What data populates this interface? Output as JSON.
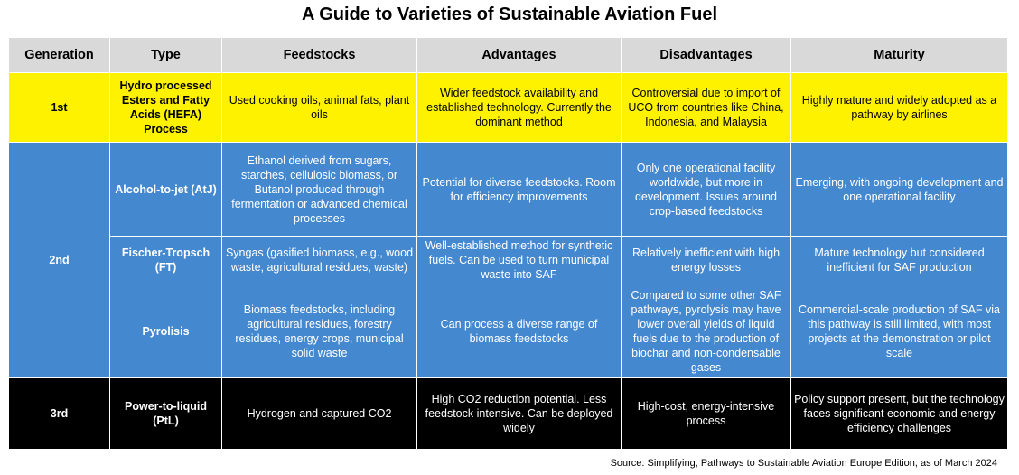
{
  "title": "A Guide to Varieties of Sustainable Aviation Fuel",
  "headers": [
    "Generation",
    "Type",
    "Feedstocks",
    "Advantages",
    "Disadvantages",
    "Maturity"
  ],
  "colors": {
    "header_bg": "#d9d9d9",
    "first_gen_bg": "#fff200",
    "second_gen_bg": "#4488d0",
    "third_gen_bg": "#000000"
  },
  "rows": {
    "first": {
      "generation": "1st",
      "type": "Hydro processed Esters and Fatty Acids (HEFA) Process",
      "feedstocks": "Used cooking oils, animal fats, plant oils",
      "advantages": "Wider feedstock availability and established technology. Currently the dominant method",
      "disadvantages": "Controversial due to import of UCO from countries like China, Indonesia, and Malaysia",
      "maturity": "Highly mature and widely adopted as a pathway  by airlines"
    },
    "second_generation": "2nd",
    "atj": {
      "type": "Alcohol-to-jet (AtJ)",
      "feedstocks": "Ethanol derived from sugars, starches, cellulosic biomass, or Butanol produced through fermentation or advanced chemical processes",
      "advantages": "Potential for diverse feedstocks. Room for efficiency improvements",
      "disadvantages": "Only one operational facility worldwide, but more in development. Issues around crop-based feedstocks",
      "maturity": "Emerging, with ongoing development and one operational facility"
    },
    "ft": {
      "type": "Fischer-Tropsch (FT)",
      "feedstocks": "Syngas (gasified biomass, e.g., wood waste, agricultural residues, waste)",
      "advantages": "Well-established method for synthetic fuels. Can be used to turn municipal waste into SAF",
      "disadvantages": "Relatively inefficient with high energy losses",
      "maturity": "Mature technology but considered inefficient for SAF production"
    },
    "pyrolisis": {
      "type": "Pyrolisis",
      "feedstocks": "Biomass feedstocks, including agricultural residues, forestry residues, energy crops, municipal solid waste",
      "advantages": "Can process a diverse range of biomass feedstocks",
      "disadvantages": "Compared to some other SAF pathways, pyrolysis may have lower overall yields of liquid fuels due to the production of biochar and non-condensable gases",
      "maturity": "Commercial-scale production of SAF via this pathway is still limited, with most projects at the demonstration or pilot scale"
    },
    "third": {
      "generation": "3rd",
      "type": "Power-to-liquid (PtL)",
      "feedstocks": "Hydrogen and captured CO2",
      "advantages": "High CO2 reduction potential. Less feedstock intensive. Can be deployed widely",
      "disadvantages": "High-cost, energy-intensive process",
      "maturity": "Policy support present, but the technology faces significant economic and energy efficiency challenges"
    }
  },
  "source": "Source: Simplifying, Pathways to Sustainable Aviation Europe Edition, as of March 2024"
}
